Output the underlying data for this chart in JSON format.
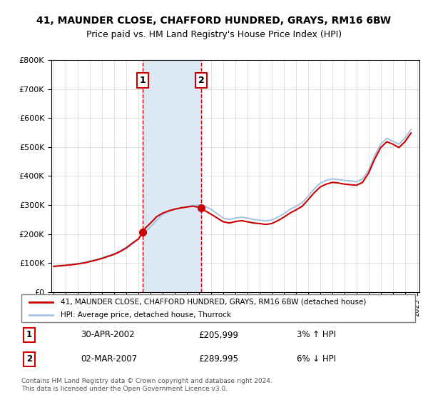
{
  "title_line1": "41, MAUNDER CLOSE, CHAFFORD HUNDRED, GRAYS, RM16 6BW",
  "title_line2": "Price paid vs. HM Land Registry's House Price Index (HPI)",
  "legend_line1": "41, MAUNDER CLOSE, CHAFFORD HUNDRED, GRAYS, RM16 6BW (detached house)",
  "legend_line2": "HPI: Average price, detached house, Thurrock",
  "transaction1_label": "1",
  "transaction1_date": "30-APR-2002",
  "transaction1_price": "£205,999",
  "transaction1_hpi": "3% ↑ HPI",
  "transaction2_label": "2",
  "transaction2_date": "02-MAR-2007",
  "transaction2_price": "£289,995",
  "transaction2_hpi": "6% ↓ HPI",
  "footer": "Contains HM Land Registry data © Crown copyright and database right 2024.\nThis data is licensed under the Open Government Licence v3.0.",
  "hpi_color": "#a8c4e0",
  "price_paid_color": "#cc0000",
  "shaded_region_color": "#dce9f5",
  "shaded_region_alpha": 0.5,
  "transaction1_x": 2002.33,
  "transaction2_x": 2007.17,
  "transaction1_y": 205999,
  "transaction2_y": 289995,
  "ylim": [
    0,
    800000
  ],
  "xlim_start": 1995,
  "xlim_end": 2025
}
